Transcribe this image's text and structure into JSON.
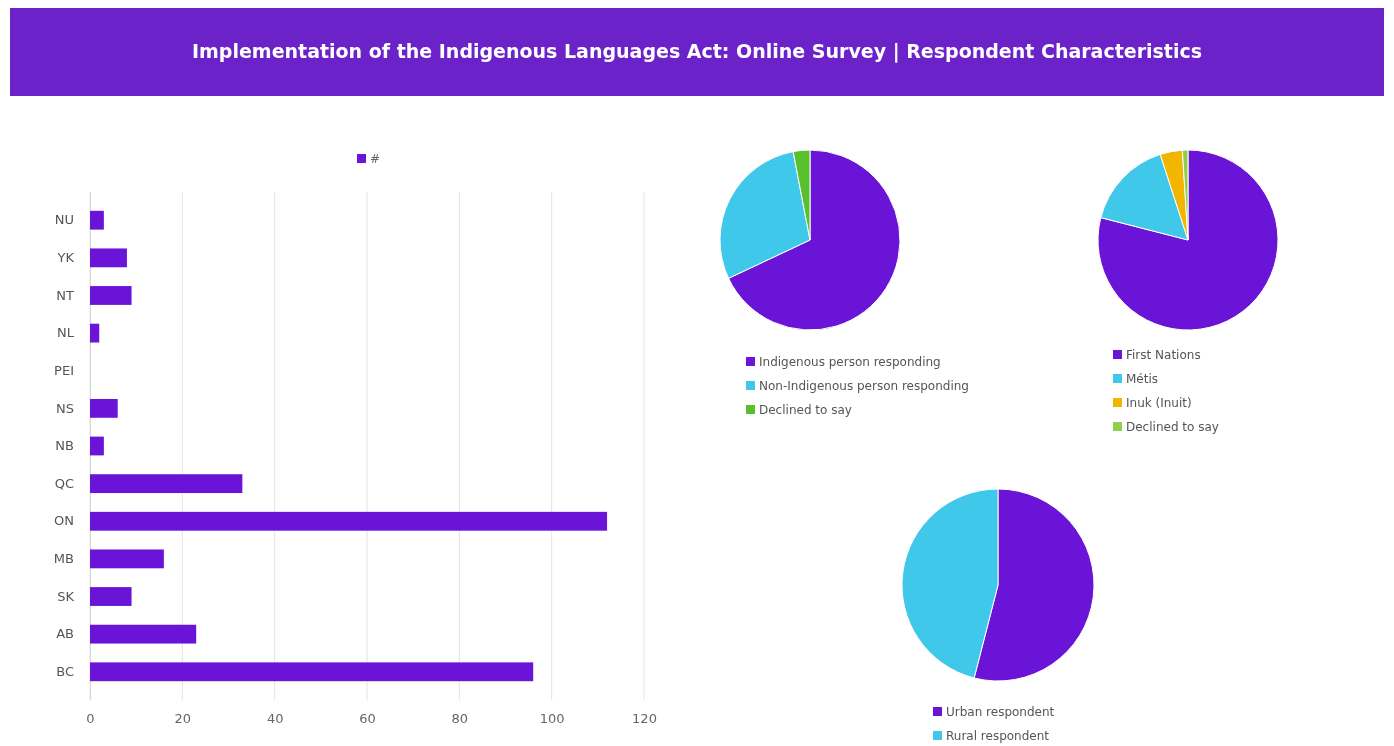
{
  "chart_data": [
    {
      "type": "bar",
      "orientation": "horizontal",
      "title": "Implementation of the Indigenous Languages Act: Online Survey  | Respondent Characteristics",
      "categories": [
        "NU",
        "YK",
        "NT",
        "NL",
        "PEI",
        "NS",
        "NB",
        "QC",
        "ON",
        "MB",
        "SK",
        "AB",
        "BC"
      ],
      "series": [
        {
          "name": "#",
          "color": "#6a14d8",
          "values": [
            3,
            8,
            9,
            2,
            0,
            6,
            3,
            33,
            112,
            16,
            9,
            23,
            96
          ]
        }
      ],
      "xlim": [
        0,
        120
      ],
      "xticks": [
        0,
        20,
        40,
        60,
        80,
        100,
        120
      ],
      "grid": "x",
      "legend": "top"
    },
    {
      "type": "pie",
      "categories": [
        "Indigenous person responding",
        "Non-Indigenous person responding",
        "Declined to say"
      ],
      "values": [
        68,
        29,
        3
      ],
      "colors": [
        "#6a14d8",
        "#3fc8ea",
        "#58c02a"
      ],
      "legend": "bottom"
    },
    {
      "type": "pie",
      "categories": [
        "First Nations",
        "Métis",
        "Inuk (Inuit)",
        "Declined to say"
      ],
      "values": [
        79,
        16,
        4,
        1
      ],
      "colors": [
        "#6a14d8",
        "#3fc8ea",
        "#f2b600",
        "#8fcf4a"
      ],
      "legend": "bottom"
    },
    {
      "type": "pie",
      "categories": [
        "Urban respondent",
        "Rural respondent"
      ],
      "values": [
        54,
        46
      ],
      "colors": [
        "#6a14d8",
        "#3fc8ea"
      ],
      "legend": "bottom"
    }
  ]
}
